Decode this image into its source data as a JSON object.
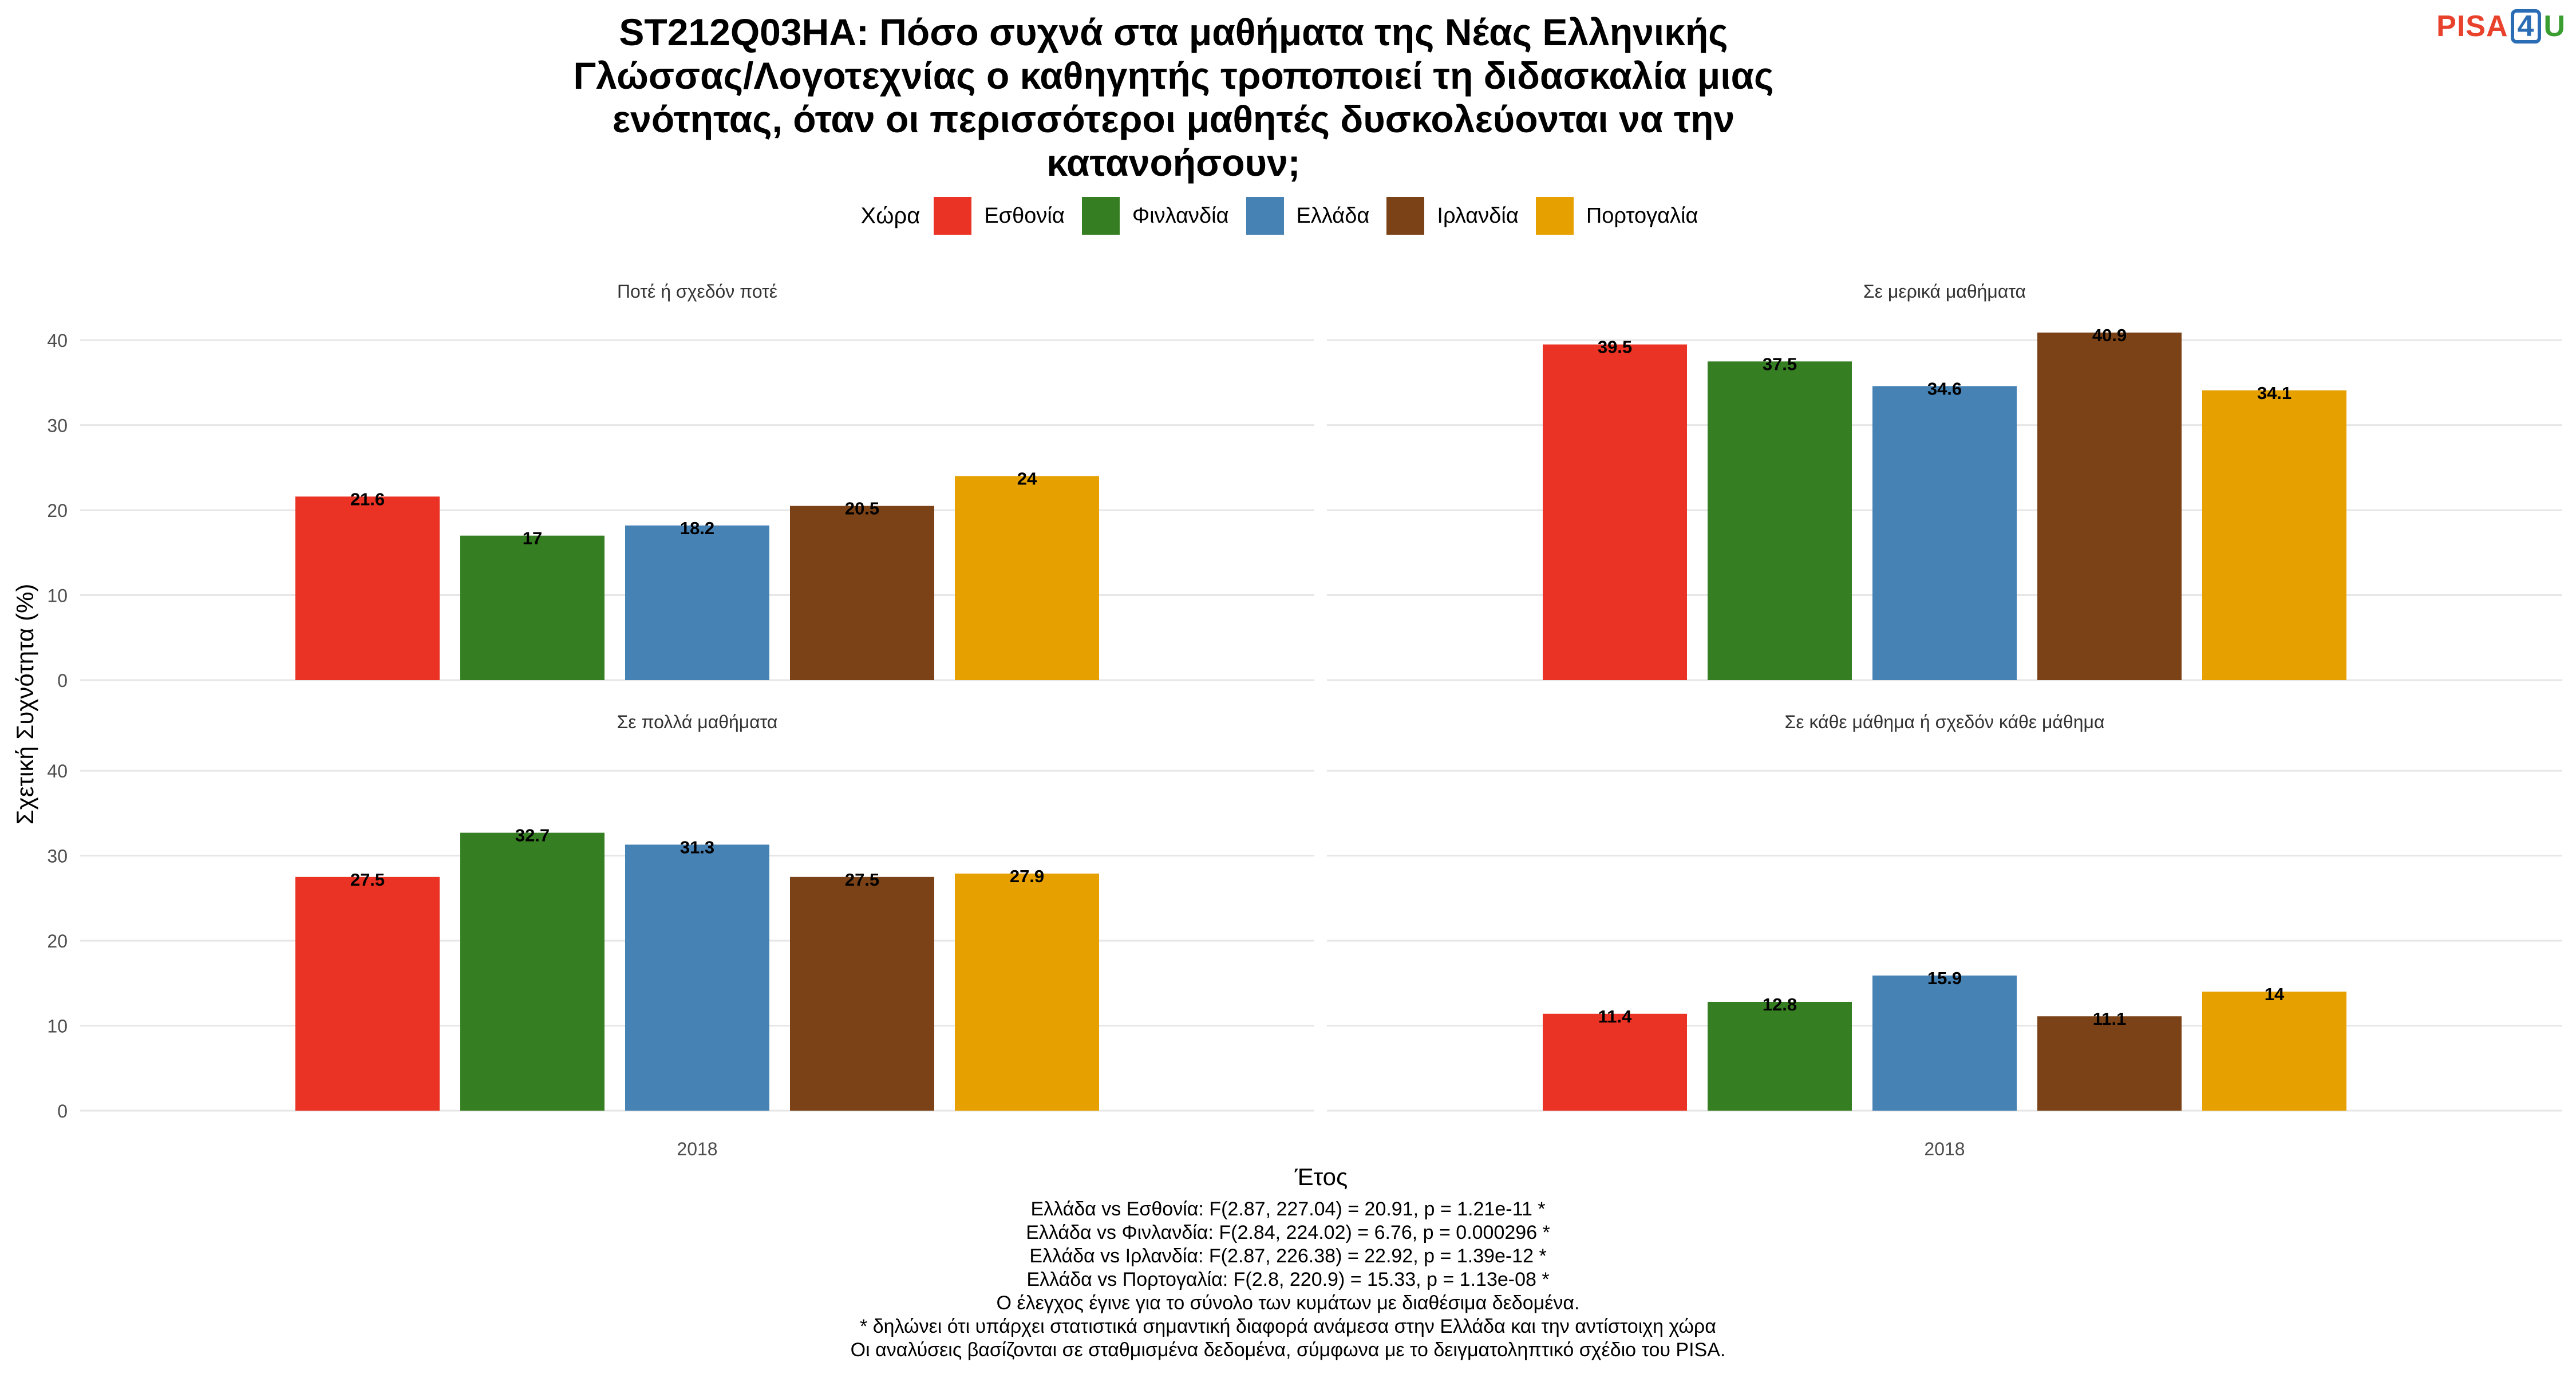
{
  "title": "ST212Q03HA: Πόσο συχνά στα μαθήματα της Νέας Ελληνικής Γλώσσας/Λογοτεχνίας ο καθηγητής τροποποιεί τη διδασκαλία μιας ενότητας, όταν οι περισσότεροι μαθητές δυσκολεύονται να την κατανοήσουν;",
  "logo": {
    "p": "PISA",
    "four": "4",
    "u": "U"
  },
  "legend_title": "Χώρα",
  "chart_data": {
    "type": "bar",
    "xlabel": "Έτος",
    "ylabel": "Σχετική Συχνότητα (%)",
    "ylim": [
      0,
      45
    ],
    "yticks": [
      0,
      10,
      20,
      30,
      40
    ],
    "grid": true,
    "legend_position": "top",
    "categories": [
      "2018"
    ],
    "series_names": [
      "Εσθονία",
      "Φινλανδία",
      "Ελλάδα",
      "Ιρλανδία",
      "Πορτογαλία"
    ],
    "colors": [
      "#ea3324",
      "#367e22",
      "#4682b4",
      "#7a4216",
      "#e6a000"
    ],
    "panels": [
      {
        "name": "Ποτέ ή σχεδόν ποτέ",
        "values": [
          21.6,
          17,
          18.2,
          20.5,
          24
        ],
        "labels": [
          "21.6",
          "17",
          "18.2",
          "20.5",
          "24"
        ]
      },
      {
        "name": "Σε μερικά μαθήματα",
        "values": [
          39.5,
          37.5,
          34.6,
          40.9,
          34.1
        ],
        "labels": [
          "39.5",
          "37.5",
          "34.6",
          "40.9",
          "34.1"
        ]
      },
      {
        "name": "Σε πολλά μαθήματα",
        "values": [
          27.5,
          32.7,
          31.3,
          27.5,
          27.9
        ],
        "labels": [
          "27.5",
          "32.7",
          "31.3",
          "27.5",
          "27.9"
        ]
      },
      {
        "name": "Σε κάθε μάθημα ή σχεδόν κάθε μάθημα",
        "values": [
          11.4,
          12.8,
          15.9,
          11.1,
          14
        ],
        "labels": [
          "11.4",
          "12.8",
          "15.9",
          "11.1",
          "14"
        ]
      }
    ]
  },
  "footer": [
    "Ελλάδα vs Εσθονία: F(2.87, 227.04) = 20.91, p = 1.21e-11 *",
    "Ελλάδα vs Φινλανδία: F(2.84, 224.02) = 6.76, p = 0.000296 *",
    "Ελλάδα vs Ιρλανδία: F(2.87, 226.38) = 22.92, p = 1.39e-12 *",
    "Ελλάδα vs Πορτογαλία: F(2.8, 220.9) = 15.33, p = 1.13e-08 *",
    "Ο έλεγχος έγινε για το σύνολο των κυμάτων με διαθέσιμα δεδομένα.",
    "* δηλώνει ότι υπάρχει στατιστικά σημαντική διαφορά ανάμεσα στην Ελλάδα και την αντίστοιχη χώρα",
    "Οι αναλύσεις βασίζονται σε σταθμισμένα δεδομένα, σύμφωνα με το δειγματοληπτικό σχέδιο του PISA."
  ]
}
